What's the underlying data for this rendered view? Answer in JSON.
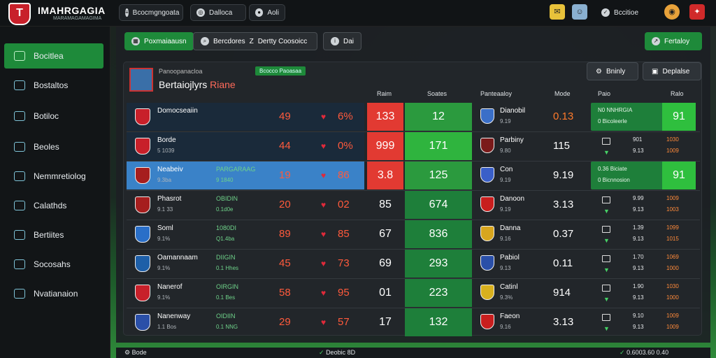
{
  "header": {
    "brand": "IMAHRGAGIA",
    "brand_sub": "MARAMAGAMAGIMA",
    "pills": [
      {
        "label": "Bcocmgngoata",
        "icon": "menu-icon"
      },
      {
        "label": "Dalloca",
        "icon": "target-icon"
      },
      {
        "label": "Aoli",
        "icon": "ball-icon"
      }
    ],
    "right": {
      "label": "Bccitioe"
    }
  },
  "sidebar": {
    "items": [
      {
        "label": "Bocitlea",
        "active": true
      },
      {
        "label": "Bostaltos"
      },
      {
        "label": "Botiloc"
      },
      {
        "label": "Beoles"
      },
      {
        "label": "Nemmretiolog"
      },
      {
        "label": "Calathds"
      },
      {
        "label": "Bertiites"
      },
      {
        "label": "Socosahs"
      },
      {
        "label": "Nvatianaion"
      }
    ]
  },
  "toolbar": {
    "primary": "Poxmaiaausn",
    "secondary": "Bercdores",
    "tertiary": "Dertty Coosoicc",
    "fourth": "Dai",
    "right": "Fertaloy"
  },
  "panel": {
    "small": "Panoopanacloa",
    "title_a": "Bertaiojlyrs ",
    "title_b": "Riane",
    "badge": "Bcocco Paoasaa",
    "btn1": "Bninly",
    "btn2": "Deplalse",
    "cols": [
      "Raim",
      "Soates",
      "Panteaaloy",
      "Mode",
      "Paio",
      "Ralo"
    ]
  },
  "rows": [
    {
      "name": "Domocseaiin",
      "sub": "",
      "stat": "",
      "stat2": "",
      "v1": "49",
      "v2": "6%",
      "a": "133",
      "b": "12",
      "rname": "Dianobil",
      "rsub": "9.19",
      "rval": "0.13",
      "rval_orange": true,
      "g1": "N0 NNHRGIA",
      "g2": "0 Bicoleerle",
      "bright": "91",
      "s1": "",
      "s2": "",
      "s3": "",
      "s4": "",
      "a_color": "#e23a32",
      "b_color": "#2b9a3e",
      "left_color": "#1a2a3a",
      "shield": "#c8202a",
      "rshield": "#3a6fc8"
    },
    {
      "name": "Borde",
      "sub": "5 1039",
      "stat": "",
      "stat2": "",
      "v1": "44",
      "v2": "0%",
      "a": "999",
      "b": "171",
      "rname": "Parbiny",
      "rsub": "9.80",
      "rval": "115",
      "rval_orange": false,
      "g1": "",
      "g2": "",
      "bright": "",
      "s1": "901",
      "s2": "9.13",
      "s3": "1030",
      "s4": "1009",
      "a_color": "#e23a32",
      "b_color": "#2fb43e",
      "left_color": "#1a2a3a",
      "shield": "#c8202a",
      "rshield": "#7a1a1a"
    },
    {
      "name": "Neabeiv",
      "sub": "9.3ba",
      "stat": "PARGARAAG",
      "stat2": "9 1840",
      "v1": "19",
      "v2": "86",
      "a": "3.8",
      "b": "125",
      "rname": "Con",
      "rsub": "9.19",
      "rval": "9.19",
      "rval_orange": false,
      "g1": "0.36 Biciate",
      "g2": "0 Bicnnosion",
      "bright": "91",
      "s1": "",
      "s2": "",
      "s3": "",
      "s4": "",
      "a_color": "#e23a32",
      "b_color": "#2b9a3e",
      "left_color": "#3a82c8",
      "shield": "#a61e1e",
      "rshield": "#3a5fc8"
    },
    {
      "name": "Phasrot",
      "sub": "9.1 33",
      "stat": "OBIDIN",
      "stat2": "0.1d0e",
      "v1": "20",
      "v2": "02",
      "a": "85",
      "b": "674",
      "rname": "Danoon",
      "rsub": "9.19",
      "rval": "3.13",
      "rval_orange": false,
      "g1": "",
      "g2": "",
      "bright": "",
      "s1": "9.99",
      "s2": "9.13",
      "s3": "1009",
      "s4": "1003",
      "a_color": "transparent",
      "b_color": "#1e7f3a",
      "left_color": "transparent",
      "shield": "#a61e1e",
      "rshield": "#c81e1e"
    },
    {
      "name": "Soml",
      "sub": "9.1%",
      "stat": "1080DI",
      "stat2": "Q1.4ba",
      "v1": "89",
      "v2": "85",
      "a": "67",
      "b": "836",
      "rname": "Danna",
      "rsub": "9.16",
      "rval": "0.37",
      "rval_orange": false,
      "g1": "",
      "g2": "",
      "bright": "",
      "s1": "1.39",
      "s2": "9.13",
      "s3": "1099",
      "s4": "1015",
      "a_color": "transparent",
      "b_color": "#1e7f3a",
      "left_color": "transparent",
      "shield": "#2a6fc8",
      "rshield": "#d8a61e"
    },
    {
      "name": "Oamannaam",
      "sub": "9.1%",
      "stat": "DIIGIN",
      "stat2": "0.1 Hhes",
      "v1": "45",
      "v2": "73",
      "a": "69",
      "b": "293",
      "rname": "Pabiol",
      "rsub": "9.13",
      "rval": "0.11",
      "rval_orange": false,
      "g1": "",
      "g2": "",
      "bright": "",
      "s1": "1.70",
      "s2": "9.13",
      "s3": "1069",
      "s4": "1000",
      "a_color": "transparent",
      "b_color": "#1e7f3a",
      "left_color": "transparent",
      "shield": "#1e5fa8",
      "rshield": "#2a4fa8"
    },
    {
      "name": "Nanerof",
      "sub": "9.1%",
      "stat": "OIRGIN",
      "stat2": "0.1 Bes",
      "v1": "58",
      "v2": "95",
      "a": "01",
      "b": "223",
      "rname": "Catinl",
      "rsub": "9.3%",
      "rval": "914",
      "rval_orange": false,
      "g1": "",
      "g2": "",
      "bright": "",
      "s1": "1.90",
      "s2": "9.13",
      "s3": "1030",
      "s4": "1000",
      "a_color": "transparent",
      "b_color": "#1e7f3a",
      "left_color": "transparent",
      "shield": "#c8202a",
      "rshield": "#d8b01e"
    },
    {
      "name": "Nanenway",
      "sub": "1.1 Bos",
      "stat": "OIDIIN",
      "stat2": "0.1 NNG",
      "v1": "29",
      "v2": "57",
      "a": "17",
      "b": "132",
      "rname": "Faeon",
      "rsub": "9.16",
      "rval": "3.13",
      "rval_orange": false,
      "g1": "",
      "g2": "",
      "bright": "",
      "s1": "9.10",
      "s2": "9.13",
      "s3": "1009",
      "s4": "1009",
      "a_color": "transparent",
      "b_color": "#1e7f3a",
      "left_color": "transparent",
      "shield": "#2a4fa8",
      "rshield": "#c81e1e"
    }
  ],
  "bottom": {
    "left": "Bode",
    "center": "Deobic 8D",
    "right": "0.6003.60 0.40"
  }
}
